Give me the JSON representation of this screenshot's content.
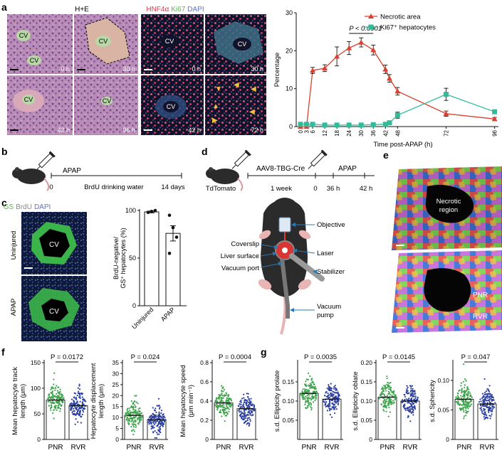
{
  "panel_letters": [
    "a",
    "b",
    "c",
    "d",
    "e",
    "f",
    "g"
  ],
  "panel_a": {
    "he_title": "H+E",
    "he_tiles": [
      {
        "time": "0 h",
        "labels": [
          "CV",
          "CV"
        ]
      },
      {
        "time": "30 h",
        "labels": [
          "CV"
        ]
      },
      {
        "time": "42 h",
        "labels": [
          "CV"
        ]
      },
      {
        "time": "96 h",
        "labels": [
          "CV"
        ]
      }
    ],
    "fluor_title": {
      "hnf": "HNF4α",
      "ki": "Ki67",
      "dapi": "DAPI"
    },
    "fluor_tiles": [
      {
        "time": "0 h",
        "label": "CV"
      },
      {
        "time": "30 h",
        "label": "CV"
      },
      {
        "time": "42 h",
        "label": "CV"
      },
      {
        "time": "72 h",
        "label": ""
      }
    ],
    "colors": {
      "hnf": "#e0364a",
      "ki": "#58b947",
      "dapi": "#5f74c8"
    }
  },
  "chart_data": [
    {
      "type": "line",
      "panel": "a",
      "ylabel": "Percentage",
      "xlabel": "Time post-APAP (h)",
      "ylim": [
        0,
        30
      ],
      "yticks": [
        0,
        10,
        20,
        30
      ],
      "xticks": [
        0,
        3,
        6,
        12,
        18,
        24,
        30,
        36,
        42,
        48,
        72,
        96
      ],
      "xtick_labels": [
        "0",
        "3",
        "6",
        "12",
        "18",
        "24",
        "30",
        "36",
        "42",
        "48",
        "72",
        "96"
      ],
      "annotation": "P < 0.0001",
      "legend_position": "top-right",
      "series": [
        {
          "name": "Necrotic area",
          "color": "#d9402f",
          "marker": "triangle",
          "x": [
            0,
            3,
            6,
            12,
            18,
            24,
            30,
            36,
            42,
            44,
            48,
            72,
            96
          ],
          "y": [
            0,
            0,
            14.8,
            15.4,
            18.5,
            20.7,
            22.2,
            20.2,
            15.1,
            12.7,
            9.3,
            3.4,
            2.0
          ],
          "err": [
            0,
            0,
            0.8,
            0.9,
            2.5,
            1.7,
            1.2,
            1.3,
            1.1,
            1.0,
            1.0,
            0.7,
            0.4
          ]
        },
        {
          "name": "Ki67⁺ hepatocytes",
          "color": "#2ebc9a",
          "marker": "square",
          "x": [
            0,
            3,
            6,
            12,
            18,
            24,
            30,
            36,
            42,
            44,
            48,
            72,
            96
          ],
          "y": [
            0.6,
            0.6,
            0.6,
            0.4,
            0.4,
            0.4,
            0.4,
            0.5,
            0.6,
            1.0,
            3.0,
            8.5,
            3.9
          ],
          "err": [
            0.2,
            0.2,
            0.2,
            0.1,
            0.1,
            0.1,
            0.1,
            0.2,
            0.2,
            0.3,
            0.8,
            1.6,
            0.4
          ]
        }
      ]
    },
    {
      "type": "bar",
      "panel": "c",
      "categories": [
        "Uninjured",
        "APAP"
      ],
      "values": [
        98.5,
        76
      ],
      "errors": [
        1,
        8
      ],
      "points": [
        [
          98,
          99,
          100,
          98
        ],
        [
          95,
          82,
          72,
          55
        ]
      ],
      "ylabel": "BrdU-negative/ GS⁺ hepatocytes (%)",
      "ylim": [
        0,
        100
      ],
      "yticks": [
        0,
        50,
        100
      ]
    },
    {
      "type": "scatter",
      "panel": "f1",
      "categories": [
        "PNR",
        "RVR"
      ],
      "means": [
        77,
        66
      ],
      "ylabel": "Mean hepatocyte track length (μm)",
      "ylim": [
        0,
        150
      ],
      "yticks": [
        0,
        50,
        100,
        150
      ],
      "annotation": "P = 0.0172"
    },
    {
      "type": "scatter",
      "panel": "f2",
      "categories": [
        "PNR",
        "RVR"
      ],
      "means": [
        11,
        9
      ],
      "ylabel": "Hepatocyte displacement length (μm)",
      "ylim": [
        0,
        35
      ],
      "yticks": [
        0,
        5,
        10,
        15,
        20,
        25,
        30,
        35
      ],
      "annotation": "P = 0.024"
    },
    {
      "type": "scatter",
      "panel": "f3",
      "categories": [
        "PNR",
        "RVR"
      ],
      "means": [
        0.38,
        0.32
      ],
      "ylabel": "Mean hepatocyte speed (μm min⁻¹)",
      "ylim": [
        0,
        0.8
      ],
      "yticks": [
        0,
        0.2,
        0.4,
        0.6,
        0.8
      ],
      "annotation": "P = 0.0004"
    },
    {
      "type": "scatter",
      "panel": "g1",
      "categories": [
        "PNR",
        "RVR"
      ],
      "means": [
        0.12,
        0.105
      ],
      "ylabel": "s.d. Ellipticity prolate",
      "ylim": [
        0,
        0.2
      ],
      "yticks": [
        0.05,
        0.1,
        0.15
      ],
      "ytick_labels": [
        "0.05",
        "0.10",
        "0.15"
      ],
      "annotation": "P = 0.0035"
    },
    {
      "type": "scatter",
      "panel": "g2",
      "categories": [
        "PNR",
        "RVR"
      ],
      "means": [
        0.11,
        0.1
      ],
      "ylabel": "s.d. Ellipticity oblate",
      "ylim": [
        0,
        0.2
      ],
      "yticks": [
        0,
        0.05,
        0.1,
        0.15,
        0.2
      ],
      "ytick_labels": [
        "0",
        "0.05",
        "0.10",
        "0.15",
        "0.20"
      ],
      "annotation": "P = 0.0145"
    },
    {
      "type": "scatter",
      "panel": "g3",
      "categories": [
        "PNR",
        "RVR"
      ],
      "means": [
        0.068,
        0.06
      ],
      "ylabel": "s.d. Sphericity",
      "ylim": [
        0,
        0.13
      ],
      "yticks": [
        0,
        0.05,
        0.1
      ],
      "ytick_labels": [
        "0",
        "0.05",
        "0.10"
      ],
      "annotation": "P = 0.047"
    }
  ],
  "panel_b": {
    "drug": "APAP",
    "zero": "0",
    "water": "BrdU drinking water",
    "days": "14 days"
  },
  "panel_c": {
    "gs": "GS",
    "brdu": "BrdU",
    "dapi": "DAPI",
    "row1": "Uninjured",
    "row2": "APAP",
    "cv": "CV"
  },
  "panel_d": {
    "virus": "AAV8-TBG-Cre",
    "drug": "APAP",
    "mouse": "TdTomato",
    "week": "1 week",
    "t0": "0",
    "t36": "36 h",
    "t42": "42 h",
    "labels": {
      "objective": "Objective",
      "coverslip": "Coverslip",
      "liver": "Liver surface",
      "laser": "Laser",
      "vacuum_port": "Vacuum port",
      "stabilizer": "Stabilizer",
      "pump_l1": "Vacuum",
      "pump_l2": "pump"
    }
  },
  "panel_e": {
    "necrotic_l1": "Necrotic",
    "necrotic_l2": "region",
    "pnr": "PNR",
    "rvr": "RVR"
  },
  "group_colors": {
    "pnr": "#3fa34d",
    "rvr": "#2b3f9e"
  }
}
